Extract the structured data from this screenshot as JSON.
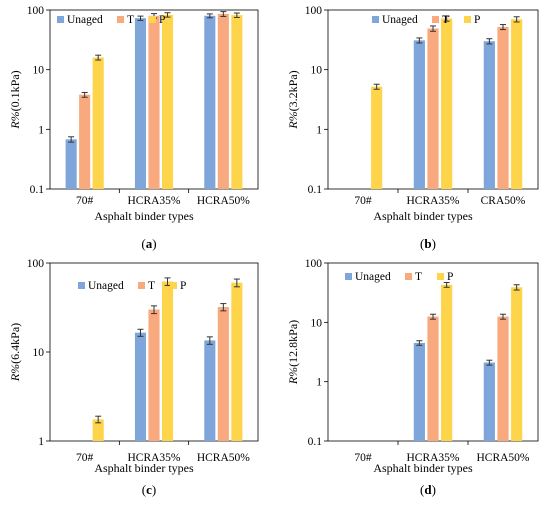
{
  "figure": {
    "panel_labels": [
      "(a)",
      "(b)",
      "(c)",
      "(d)"
    ]
  },
  "colors": {
    "Unaged": "#7EA6DA",
    "T": "#F8A97E",
    "P": "#FED54A",
    "error_bar": "#333333"
  },
  "chart_data": [
    {
      "type": "bar",
      "panel": "(a)",
      "ylabel_prefix": "R%",
      "ylabel_suffix": "(0.1kPa)",
      "xlabel": "Asphalt binder types",
      "categories": [
        "70#",
        "HCRA35%",
        "HCRA50%"
      ],
      "series": [
        {
          "name": "Unaged",
          "values": [
            0.68,
            73,
            80
          ],
          "errors": [
            0.07,
            6,
            6
          ]
        },
        {
          "name": "T",
          "values": [
            3.8,
            80,
            86
          ],
          "errors": [
            0.35,
            7,
            8
          ]
        },
        {
          "name": "P",
          "values": [
            16,
            83,
            82
          ],
          "errors": [
            1.5,
            7,
            7
          ]
        }
      ],
      "yscale": "log",
      "ylim": [
        0.1,
        100
      ],
      "yticks": [
        0.1,
        1,
        10,
        100
      ],
      "ytick_labels": [
        "0.1",
        "1",
        "10",
        "100"
      ],
      "legend": "top-left"
    },
    {
      "type": "bar",
      "panel": "(b)",
      "ylabel_prefix": "R%",
      "ylabel_suffix": "(3.2kPa)",
      "xlabel": "Asphalt binder types",
      "categories": [
        "70#",
        "HCRA35%",
        "CRA50%"
      ],
      "series": [
        {
          "name": "Unaged",
          "values": [
            null,
            31,
            30
          ],
          "errors": [
            null,
            3,
            3
          ]
        },
        {
          "name": "T",
          "values": [
            null,
            49,
            52
          ],
          "errors": [
            null,
            5,
            5
          ]
        },
        {
          "name": "P",
          "values": [
            5.2,
            72,
            70
          ],
          "errors": [
            0.5,
            7,
            7
          ]
        }
      ],
      "yscale": "log",
      "ylim": [
        0.1,
        100
      ],
      "yticks": [
        0.1,
        1,
        10,
        100
      ],
      "ytick_labels": [
        "0.1",
        "1",
        "10",
        "100"
      ],
      "legend": "top-center"
    },
    {
      "type": "bar",
      "panel": "(c)",
      "ylabel_prefix": "R%",
      "ylabel_suffix": "(6.4kPa)",
      "xlabel": "Asphalt binder types",
      "categories": [
        "70#",
        "HCRA35%",
        "HCRA50%"
      ],
      "series": [
        {
          "name": "Unaged",
          "values": [
            null,
            16.5,
            13.5
          ],
          "errors": [
            null,
            1.5,
            1.3
          ]
        },
        {
          "name": "T",
          "values": [
            null,
            30,
            32
          ],
          "errors": [
            null,
            3,
            3
          ]
        },
        {
          "name": "P",
          "values": [
            1.75,
            62,
            60
          ],
          "errors": [
            0.15,
            6,
            6
          ]
        }
      ],
      "yscale": "log",
      "ylim": [
        1,
        100
      ],
      "yticks": [
        1,
        10,
        100
      ],
      "ytick_labels": [
        "1",
        "10",
        "100"
      ],
      "legend": "top-left"
    },
    {
      "type": "bar",
      "panel": "(d)",
      "ylabel_prefix": "R%",
      "ylabel_suffix": "(12.8kPa)",
      "xlabel": "Asphalt binder types",
      "categories": [
        "70#",
        "HCRA35%",
        "HCRA50%"
      ],
      "series": [
        {
          "name": "Unaged",
          "values": [
            null,
            4.5,
            2.1
          ],
          "errors": [
            null,
            0.4,
            0.2
          ]
        },
        {
          "name": "T",
          "values": [
            null,
            12.5,
            12.5
          ],
          "errors": [
            null,
            1.2,
            1.2
          ]
        },
        {
          "name": "P",
          "values": [
            null,
            43,
            39
          ],
          "errors": [
            null,
            4,
            4
          ]
        }
      ],
      "yscale": "log",
      "ylim": [
        0.1,
        100
      ],
      "yticks": [
        0.1,
        1,
        10,
        100
      ],
      "ytick_labels": [
        "0.1",
        "1",
        "10",
        "100"
      ],
      "legend": "top-left"
    }
  ]
}
